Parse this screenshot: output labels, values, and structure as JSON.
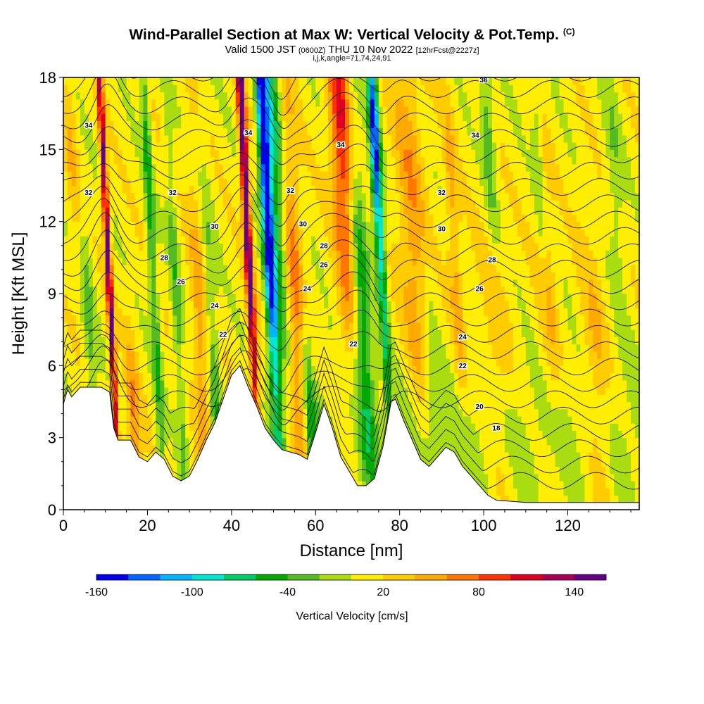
{
  "header": {
    "title": "Wind-Parallel Section at Max W: Vertical Velocity & Pot.Temp.",
    "copyright": "(C)",
    "valid_a": "Valid 1500 JST",
    "valid_utc": "(0600Z)",
    "valid_b": "THU 10 Nov 2022",
    "forecast": "[12hrFcst@2227z]",
    "indices": "i,j,k,angle=71,74,24,91"
  },
  "chart_data": {
    "type": "heatmap",
    "xlabel": "Distance [nm]",
    "ylabel": "Height [Kft MSL]",
    "xlim": [
      0,
      137
    ],
    "ylim": [
      0,
      18
    ],
    "x_ticks": [
      0,
      20,
      40,
      60,
      80,
      100,
      120
    ],
    "y_ticks": [
      0,
      3,
      6,
      9,
      12,
      15,
      18
    ],
    "colorbar": {
      "label": "Vertical Velocity [cm/s]",
      "tick_labels": [
        "-160",
        "-100",
        "-40",
        "20",
        "80",
        "140"
      ],
      "tick_values": [
        -160,
        -100,
        -40,
        20,
        80,
        140
      ],
      "bounds": [
        -160,
        -140,
        -120,
        -100,
        -80,
        -60,
        -40,
        -20,
        0,
        20,
        40,
        60,
        80,
        100,
        120,
        140,
        160
      ],
      "colors": [
        "#0000ee",
        "#0066ff",
        "#00b4ff",
        "#00e6d2",
        "#00cc66",
        "#00aa00",
        "#55bb22",
        "#aadd11",
        "#ffee00",
        "#ffcc00",
        "#ffaa00",
        "#ff7700",
        "#ff3300",
        "#dd0022",
        "#aa0055",
        "#660088"
      ]
    },
    "terrain_kft": [
      [
        0,
        4.4
      ],
      [
        1,
        5.0
      ],
      [
        2,
        4.7
      ],
      [
        4,
        5.1
      ],
      [
        9,
        5.1
      ],
      [
        11,
        4.9
      ],
      [
        12,
        3.4
      ],
      [
        13,
        2.9
      ],
      [
        16,
        2.9
      ],
      [
        18,
        2.2
      ],
      [
        20,
        2.0
      ],
      [
        22,
        2.4
      ],
      [
        24,
        2.1
      ],
      [
        26,
        1.4
      ],
      [
        28,
        1.2
      ],
      [
        30,
        1.4
      ],
      [
        32,
        2.1
      ],
      [
        34,
        2.9
      ],
      [
        36,
        3.6
      ],
      [
        38,
        4.6
      ],
      [
        40,
        5.6
      ],
      [
        42,
        6.0
      ],
      [
        44,
        5.1
      ],
      [
        46,
        4.3
      ],
      [
        48,
        3.4
      ],
      [
        50,
        2.9
      ],
      [
        52,
        2.5
      ],
      [
        54,
        2.4
      ],
      [
        56,
        2.3
      ],
      [
        58,
        2.1
      ],
      [
        60,
        3.2
      ],
      [
        62,
        4.4
      ],
      [
        64,
        3.4
      ],
      [
        66,
        2.2
      ],
      [
        68,
        1.6
      ],
      [
        70,
        1.0
      ],
      [
        72,
        1.0
      ],
      [
        74,
        1.3
      ],
      [
        76,
        2.6
      ],
      [
        78,
        4.5
      ],
      [
        79,
        4.6
      ],
      [
        81,
        3.7
      ],
      [
        83,
        2.9
      ],
      [
        85,
        2.1
      ],
      [
        87,
        1.8
      ],
      [
        89,
        2.2
      ],
      [
        91,
        2.6
      ],
      [
        93,
        2.4
      ],
      [
        95,
        1.8
      ],
      [
        97,
        1.4
      ],
      [
        99,
        1.0
      ],
      [
        101,
        0.6
      ],
      [
        103,
        0.4
      ],
      [
        110,
        0.3
      ],
      [
        137,
        0.3
      ]
    ],
    "contour_label_values": [
      "34",
      "34",
      "34",
      "34",
      "36",
      "32",
      "32",
      "32",
      "32",
      "30",
      "30",
      "30",
      "28",
      "28",
      "28",
      "26",
      "26",
      "26",
      "24",
      "24",
      "24",
      "22",
      "22",
      "22",
      "20",
      "18"
    ]
  }
}
